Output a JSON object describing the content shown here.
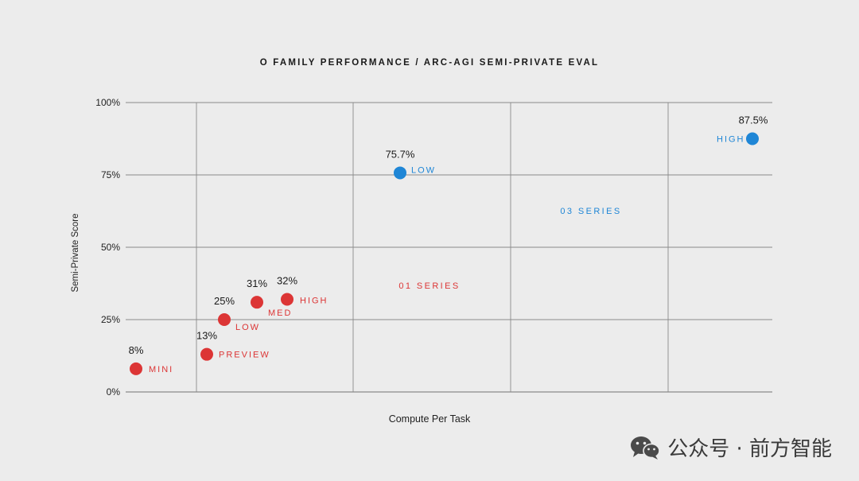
{
  "chart_data": {
    "type": "scatter",
    "title": "O FAMILY PERFORMANCE / ARC-AGI SEMI-PRIVATE EVAL",
    "xlabel": "Compute Per Task",
    "ylabel": "Semi-Private Score",
    "ylim": [
      0,
      100
    ],
    "yticks": [
      "0%",
      "25%",
      "50%",
      "75%",
      "100%"
    ],
    "grid": true,
    "series": [
      {
        "name": "01 SERIES",
        "color": "#dc3535",
        "points": [
          {
            "label": "MINI",
            "value_text": "8%",
            "y": 8
          },
          {
            "label": "PREVIEW",
            "value_text": "13%",
            "y": 13
          },
          {
            "label": "LOW",
            "value_text": "25%",
            "y": 25
          },
          {
            "label": "MED",
            "value_text": "31%",
            "y": 31
          },
          {
            "label": "HIGH",
            "value_text": "32%",
            "y": 32
          }
        ]
      },
      {
        "name": "03 SERIES",
        "color": "#1f86d6",
        "points": [
          {
            "label": "LOW",
            "value_text": "75.7%",
            "y": 75.7
          },
          {
            "label": "HIGH",
            "value_text": "87.5%",
            "y": 87.5
          }
        ]
      }
    ]
  },
  "watermark": {
    "text": "公众号 · 前方智能",
    "icon": "wechat-icon"
  }
}
